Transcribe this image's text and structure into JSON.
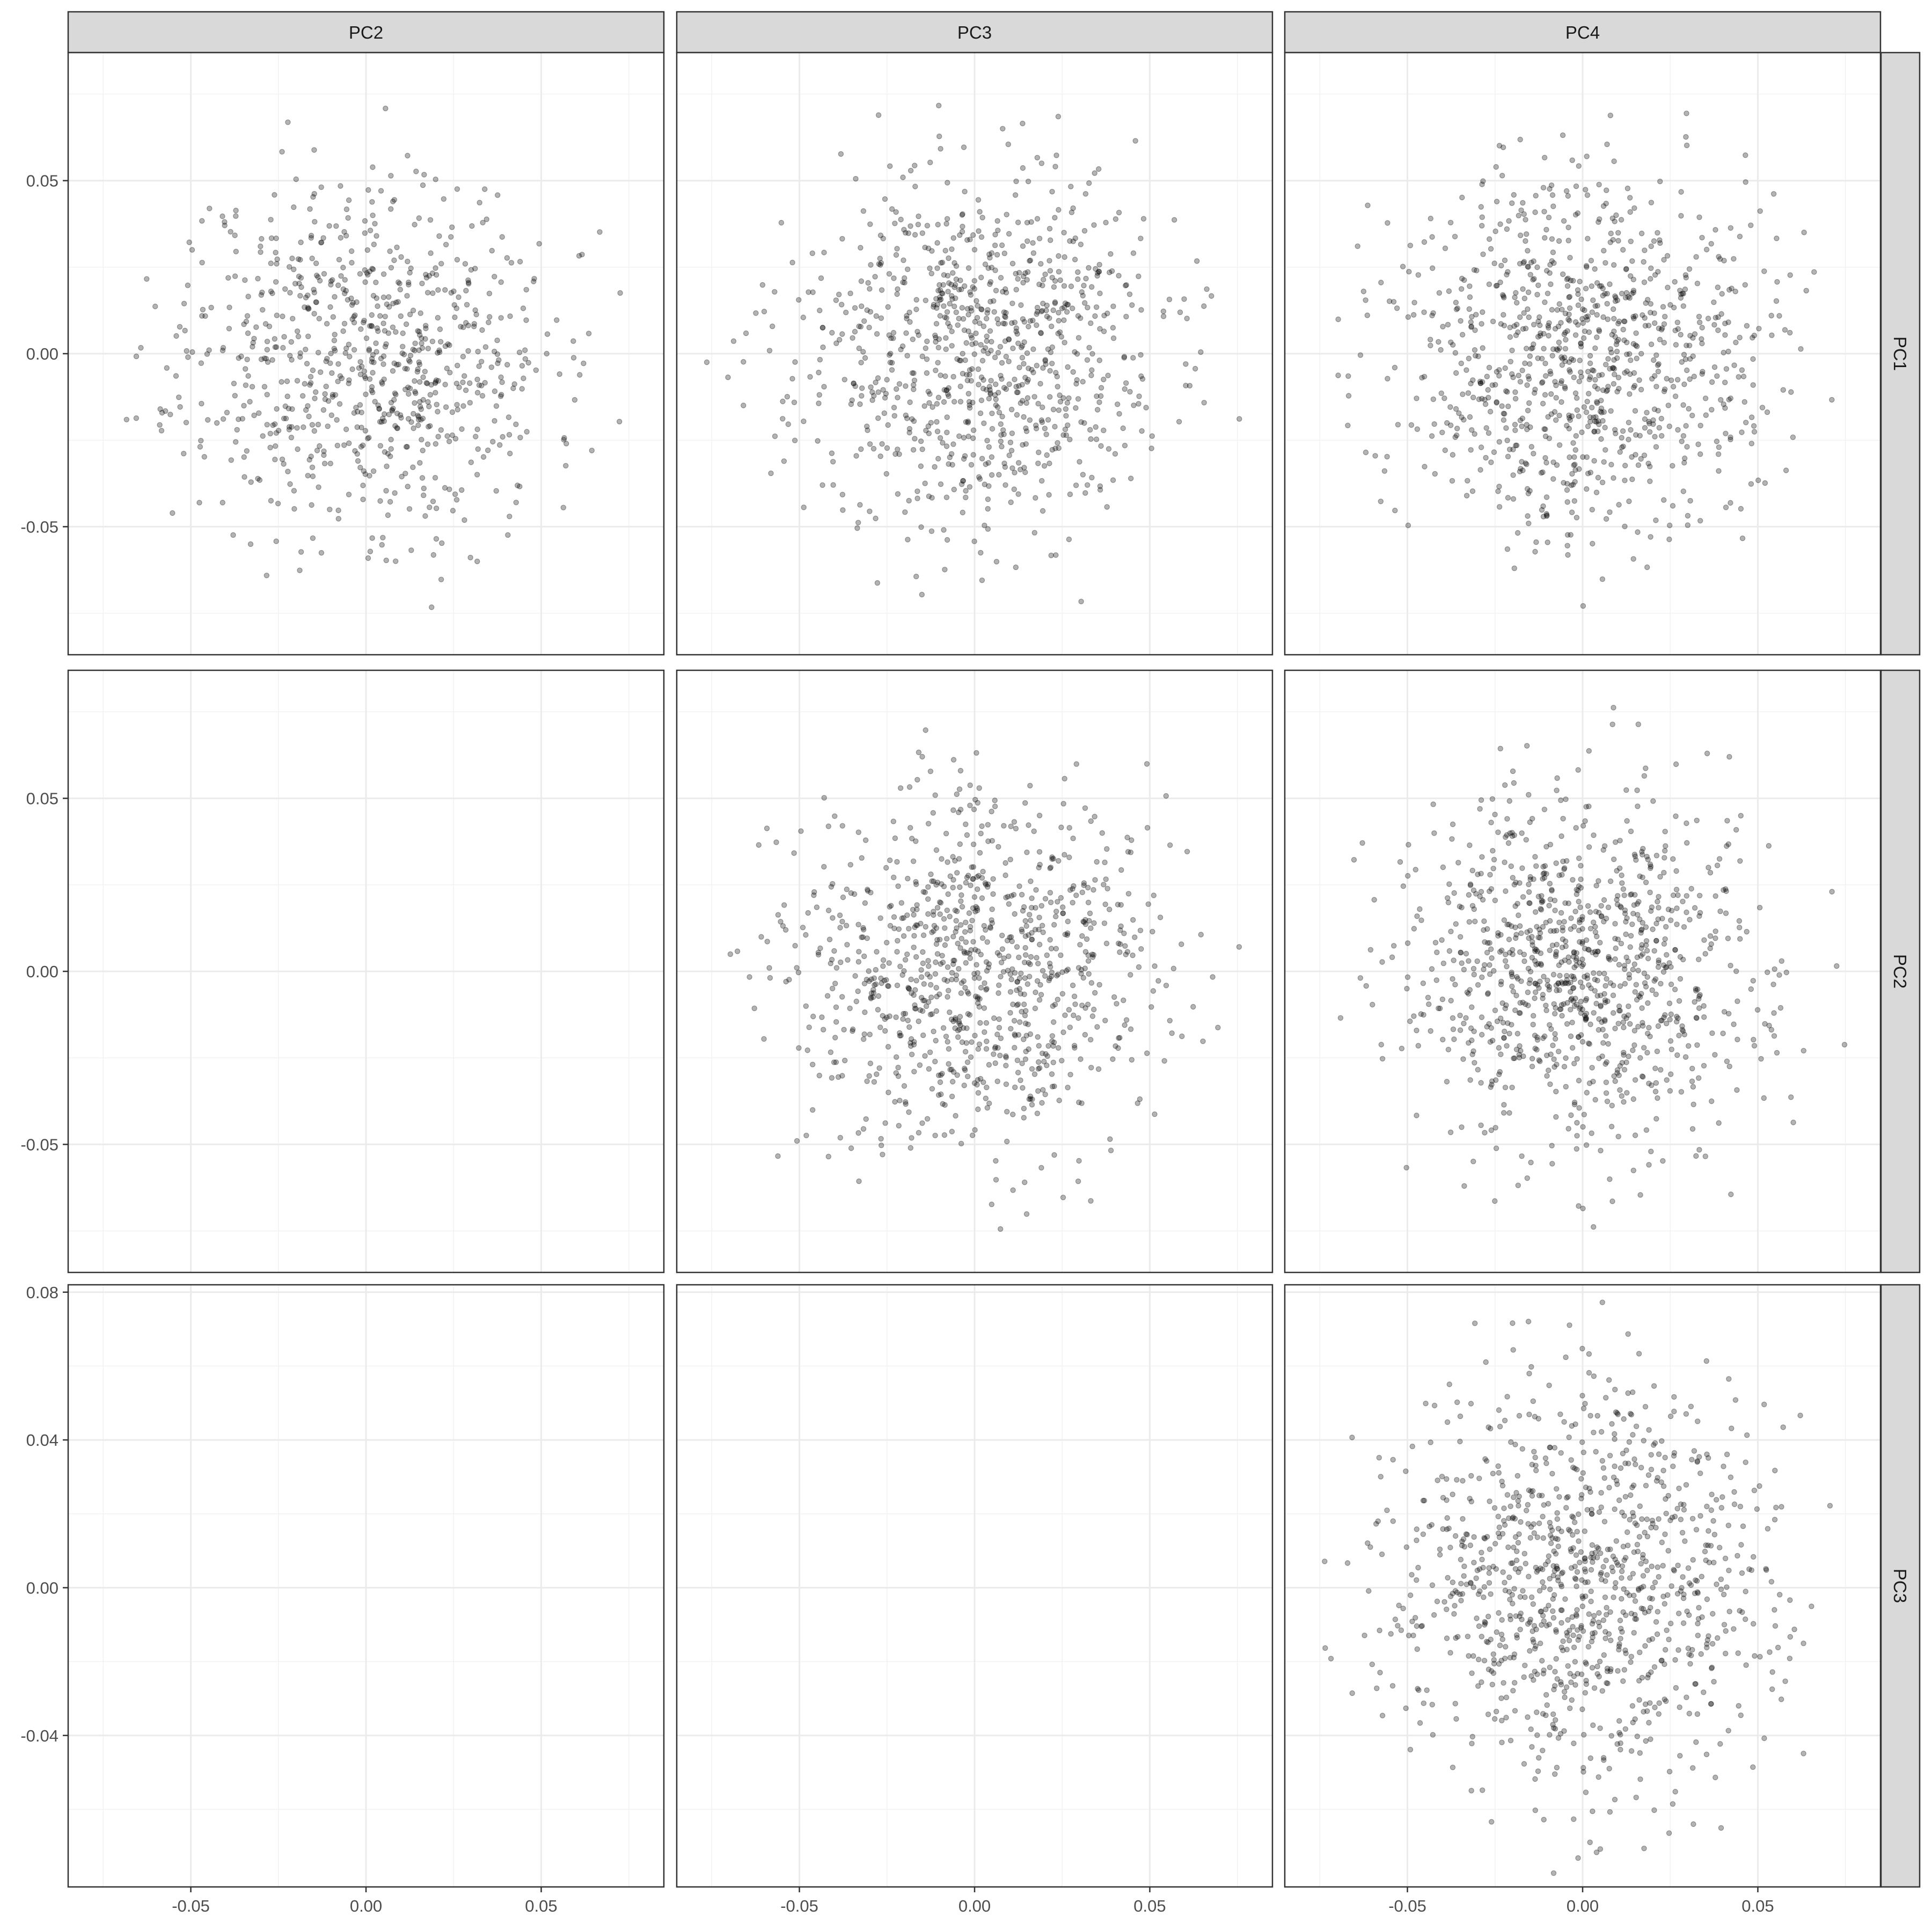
{
  "chart_data": {
    "type": "scatter",
    "layout": "facet-grid",
    "column_facets": [
      "PC2",
      "PC3",
      "PC4"
    ],
    "row_facets": [
      "PC1",
      "PC2",
      "PC3"
    ],
    "x_axis": {
      "range": [
        -0.085,
        0.085
      ],
      "ticks": [
        -0.05,
        0.0,
        0.05
      ],
      "tick_labels": [
        "-0.05",
        "0.00",
        "0.05"
      ]
    },
    "row_axes": [
      {
        "range": [
          -0.087,
          0.087
        ],
        "ticks": [
          -0.05,
          0.0,
          0.05
        ],
        "tick_labels": [
          "-0.05",
          "0.00",
          "0.05"
        ]
      },
      {
        "range": [
          -0.087,
          0.087
        ],
        "ticks": [
          -0.05,
          0.0,
          0.05
        ],
        "tick_labels": [
          "-0.05",
          "0.00",
          "0.05"
        ]
      },
      {
        "range": [
          -0.081,
          0.082
        ],
        "ticks": [
          -0.04,
          0.0,
          0.04,
          0.08
        ],
        "tick_labels": [
          "-0.04",
          "0.00",
          "0.04",
          "0.08"
        ]
      }
    ],
    "panels": [
      {
        "row": 0,
        "col": 0,
        "points": 800,
        "spread": 0.026,
        "extent": 0.076,
        "seed": 11
      },
      {
        "row": 0,
        "col": 1,
        "points": 900,
        "spread": 0.026,
        "extent": 0.078,
        "seed": 23
      },
      {
        "row": 0,
        "col": 2,
        "points": 950,
        "spread": 0.026,
        "extent": 0.078,
        "seed": 37
      },
      {
        "row": 1,
        "col": 0,
        "points": 0
      },
      {
        "row": 1,
        "col": 1,
        "points": 950,
        "spread": 0.026,
        "extent": 0.078,
        "seed": 41
      },
      {
        "row": 1,
        "col": 2,
        "points": 1000,
        "spread": 0.026,
        "extent": 0.078,
        "seed": 53
      },
      {
        "row": 2,
        "col": 0,
        "points": 0
      },
      {
        "row": 2,
        "col": 1,
        "points": 0
      },
      {
        "row": 2,
        "col": 2,
        "points": 1050,
        "spread": 0.027,
        "extent": 0.078,
        "seed": 67
      }
    ],
    "point_color": "#000000",
    "point_alpha": 0.35,
    "grid": true,
    "legend": "none",
    "title": "",
    "xlabel": "",
    "ylabel": ""
  }
}
